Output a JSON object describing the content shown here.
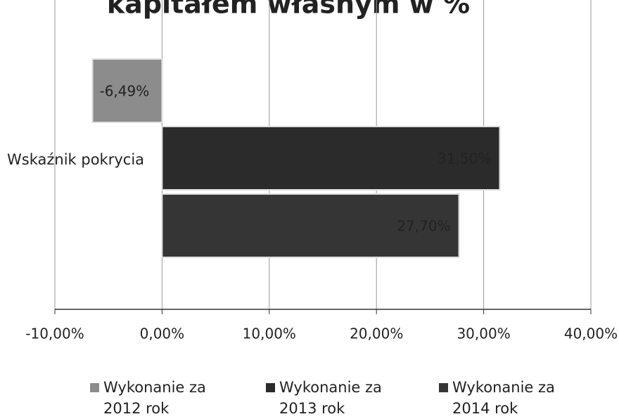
{
  "chart_data": {
    "type": "barh",
    "title": "kapitałem własnym w %",
    "categories": [
      "Wskaźnik pokrycia"
    ],
    "series": [
      {
        "name": "Wykonanie za 2012 rok",
        "color": "#8c8c8c",
        "values": [
          -6.49
        ],
        "value_labels": [
          "-6,49%"
        ]
      },
      {
        "name": "Wykonanie za 2013 rok",
        "color": "#2b2b2b",
        "values": [
          31.5
        ],
        "value_labels": [
          "31,50%"
        ]
      },
      {
        "name": "Wykonanie za 2014 rok",
        "color": "#353535",
        "values": [
          27.7
        ],
        "value_labels": [
          "27,70%"
        ]
      }
    ],
    "xlim": [
      -10,
      40
    ],
    "xticks": [
      {
        "value": -10,
        "label": "-10,00%"
      },
      {
        "value": 0,
        "label": "0,00%"
      },
      {
        "value": 10,
        "label": "10,00%"
      },
      {
        "value": 20,
        "label": "20,00%"
      },
      {
        "value": 30,
        "label": "30,00%"
      },
      {
        "value": 40,
        "label": "40,00%"
      }
    ],
    "grid": true,
    "legend": "bottom"
  }
}
